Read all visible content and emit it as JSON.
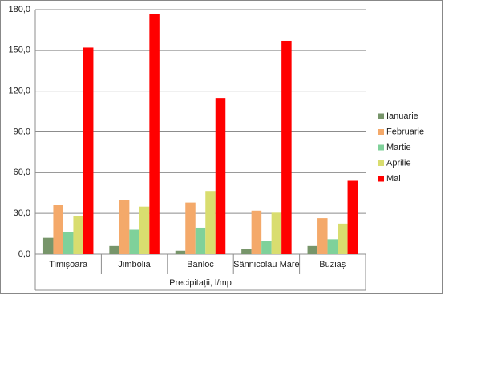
{
  "chart_data": {
    "type": "bar",
    "categories": [
      "Timișoara",
      "Jimbolia",
      "Banloc",
      "Sânnicolau Mare",
      "Buziaș"
    ],
    "x_label": "Precipitații, l/mp",
    "series": [
      {
        "name": "Ianuarie",
        "color": "#77956a",
        "values": [
          12,
          6,
          2.5,
          4,
          6
        ]
      },
      {
        "name": "Februarie",
        "color": "#f4a96a",
        "values": [
          36,
          40,
          38,
          32,
          26.5
        ]
      },
      {
        "name": "Martie",
        "color": "#7fd19a",
        "values": [
          16,
          18,
          19.5,
          10,
          11
        ]
      },
      {
        "name": "Aprilie",
        "color": "#d9dd6f",
        "values": [
          28,
          35,
          46.5,
          30.5,
          22.5
        ]
      },
      {
        "name": "Mai",
        "color": "#ff0000",
        "values": [
          152,
          177,
          115,
          157,
          54
        ]
      }
    ],
    "ylim": [
      0,
      180
    ],
    "yticks": [
      {
        "value": 0,
        "label": "0,0"
      },
      {
        "value": 30,
        "label": "30,0"
      },
      {
        "value": 60,
        "label": "60,0"
      },
      {
        "value": 90,
        "label": "90,0"
      },
      {
        "value": 120,
        "label": "120,0"
      },
      {
        "value": 150,
        "label": "150,0"
      },
      {
        "value": 180,
        "label": "180,0"
      }
    ],
    "grid": true,
    "legend": "right"
  }
}
